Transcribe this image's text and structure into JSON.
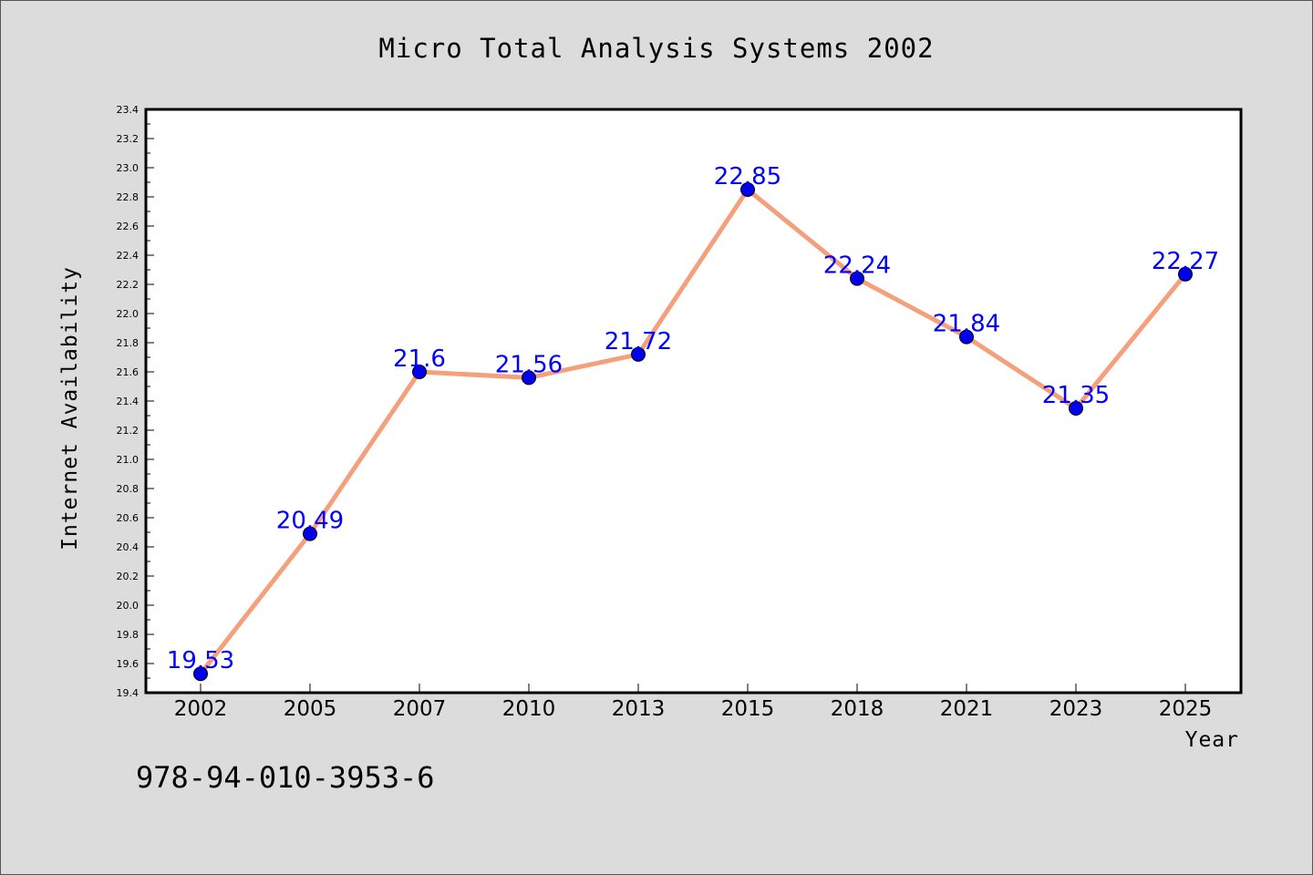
{
  "chart_data": {
    "type": "line",
    "title": "Micro Total Analysis Systems 2002",
    "xlabel": "Year",
    "ylabel": "Internet Availability",
    "categories": [
      "2002",
      "2005",
      "2007",
      "2010",
      "2013",
      "2015",
      "2018",
      "2021",
      "2023",
      "2025"
    ],
    "series": [
      {
        "values": [
          19.53,
          20.49,
          21.6,
          21.56,
          21.72,
          22.85,
          22.24,
          21.84,
          21.35,
          22.27
        ]
      }
    ],
    "data_labels": [
      "19.53",
      "20.49",
      "21.6",
      "21.56",
      "21.72",
      "22.85",
      "22.24",
      "21.84",
      "21.35",
      "22.27"
    ],
    "ylim": [
      19.4,
      23.4
    ],
    "yticks": [
      "19.4",
      "19.6",
      "19.8",
      "20.0",
      "20.2",
      "20.4",
      "20.6",
      "20.8",
      "21.0",
      "21.2",
      "21.4",
      "21.6",
      "21.8",
      "22.0",
      "22.2",
      "22.4",
      "22.6",
      "22.8",
      "23.0",
      "23.2",
      "23.4"
    ],
    "grid": false,
    "legend": "none",
    "colors": {
      "line": "#f4a07c",
      "marker": "#0000ee",
      "data_label": "#0000ff",
      "background": "#dcdcdc",
      "plot_background": "#ffffff"
    }
  },
  "footnote": "978-94-010-3953-6"
}
